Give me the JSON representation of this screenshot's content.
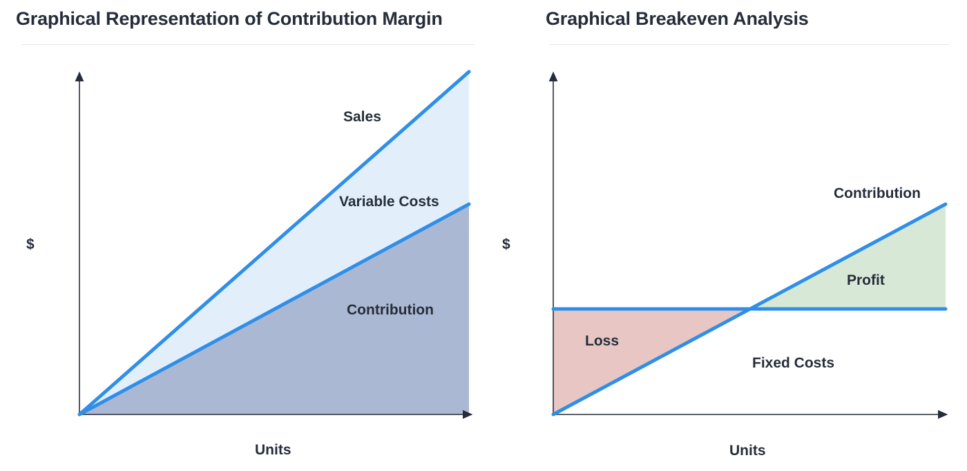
{
  "left_panel": {
    "title": "Graphical Representation of Contribution Margin",
    "y_axis_label": "$",
    "x_axis_label": "Units",
    "labels": {
      "sales": "Sales",
      "variable_costs": "Variable Costs",
      "contribution": "Contribution"
    }
  },
  "right_panel": {
    "title": "Graphical Breakeven Analysis",
    "y_axis_label": "$",
    "x_axis_label": "Units",
    "labels": {
      "contribution": "Contribution",
      "profit": "Profit",
      "loss": "Loss",
      "fixed_costs": "Fixed Costs"
    }
  },
  "colors": {
    "line": "#2f8fe8",
    "sales_area": "#e2effb",
    "contribution_area": "#abb8d3",
    "profit_area": "#d7e9d6",
    "loss_area": "#e8c6c4",
    "axis": "#262d3a",
    "text": "#262d3a"
  }
}
